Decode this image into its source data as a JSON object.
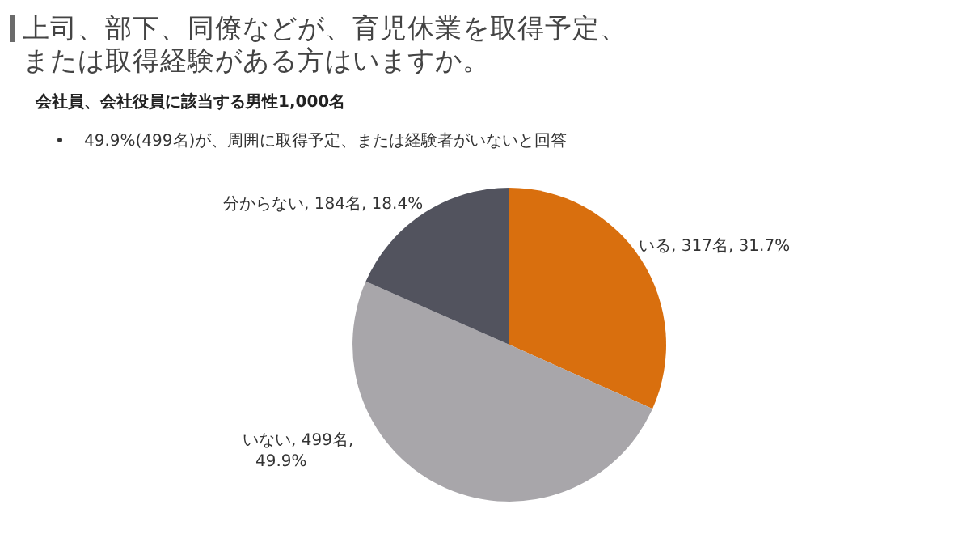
{
  "chart_data": {
    "type": "pie",
    "title": "上司、部下、同僚などが、育児休業を取得予定、または取得経験がある方はいますか。",
    "subtitle": "会社員、会社役員に該当する男性1,000名",
    "annotations": [
      "49.9%(499名)が、周囲に取得予定、または経験者がいないと回答"
    ],
    "categories": [
      "いる",
      "いない",
      "分からない"
    ],
    "values": [
      317,
      499,
      184
    ],
    "colors": [
      "#d96f0e",
      "#a8a6aa",
      "#52535e"
    ],
    "value_labels": [
      "317名, 31.7%",
      "499名,\n49.9%",
      "184名, 18.4%"
    ]
  }
}
